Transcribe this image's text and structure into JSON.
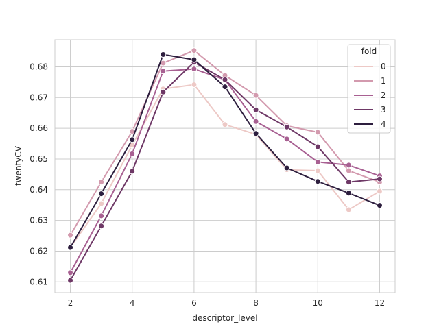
{
  "chart_data": {
    "type": "line",
    "xlabel": "descriptor_level",
    "ylabel": "twentyCV",
    "xlim": [
      1.5,
      12.5
    ],
    "ylim": [
      0.6065,
      0.6888
    ],
    "xticks": [
      2,
      4,
      6,
      8,
      10,
      12
    ],
    "yticks": [
      0.61,
      0.62,
      0.63,
      0.64,
      0.65,
      0.66,
      0.67,
      0.68
    ],
    "grid": true,
    "legend": {
      "title": "fold",
      "placement": "top-right"
    },
    "x": [
      2,
      3,
      4,
      5,
      6,
      7,
      8,
      9,
      10,
      11,
      12
    ],
    "series": [
      {
        "name": "0",
        "color": "#edc9c6",
        "values": [
          0.6212,
          0.6355,
          0.6545,
          0.6728,
          0.6742,
          0.6612,
          0.658,
          0.6465,
          0.6462,
          0.6335,
          0.6395
        ]
      },
      {
        "name": "1",
        "color": "#d39aae",
        "values": [
          0.6252,
          0.6425,
          0.659,
          0.6812,
          0.6853,
          0.6772,
          0.6707,
          0.6608,
          0.6587,
          0.6462,
          0.6425
        ]
      },
      {
        "name": "2",
        "color": "#a86092",
        "values": [
          0.613,
          0.6315,
          0.6517,
          0.6786,
          0.6793,
          0.6758,
          0.6622,
          0.6565,
          0.649,
          0.648,
          0.6445
        ]
      },
      {
        "name": "3",
        "color": "#6e3866",
        "values": [
          0.6105,
          0.6282,
          0.646,
          0.6718,
          0.6815,
          0.6758,
          0.666,
          0.6604,
          0.654,
          0.6425,
          0.6435
        ]
      },
      {
        "name": "4",
        "color": "#2d1e3e",
        "values": [
          0.6212,
          0.6387,
          0.6563,
          0.684,
          0.6823,
          0.6735,
          0.6583,
          0.6471,
          0.6427,
          0.6389,
          0.6349
        ]
      }
    ]
  }
}
